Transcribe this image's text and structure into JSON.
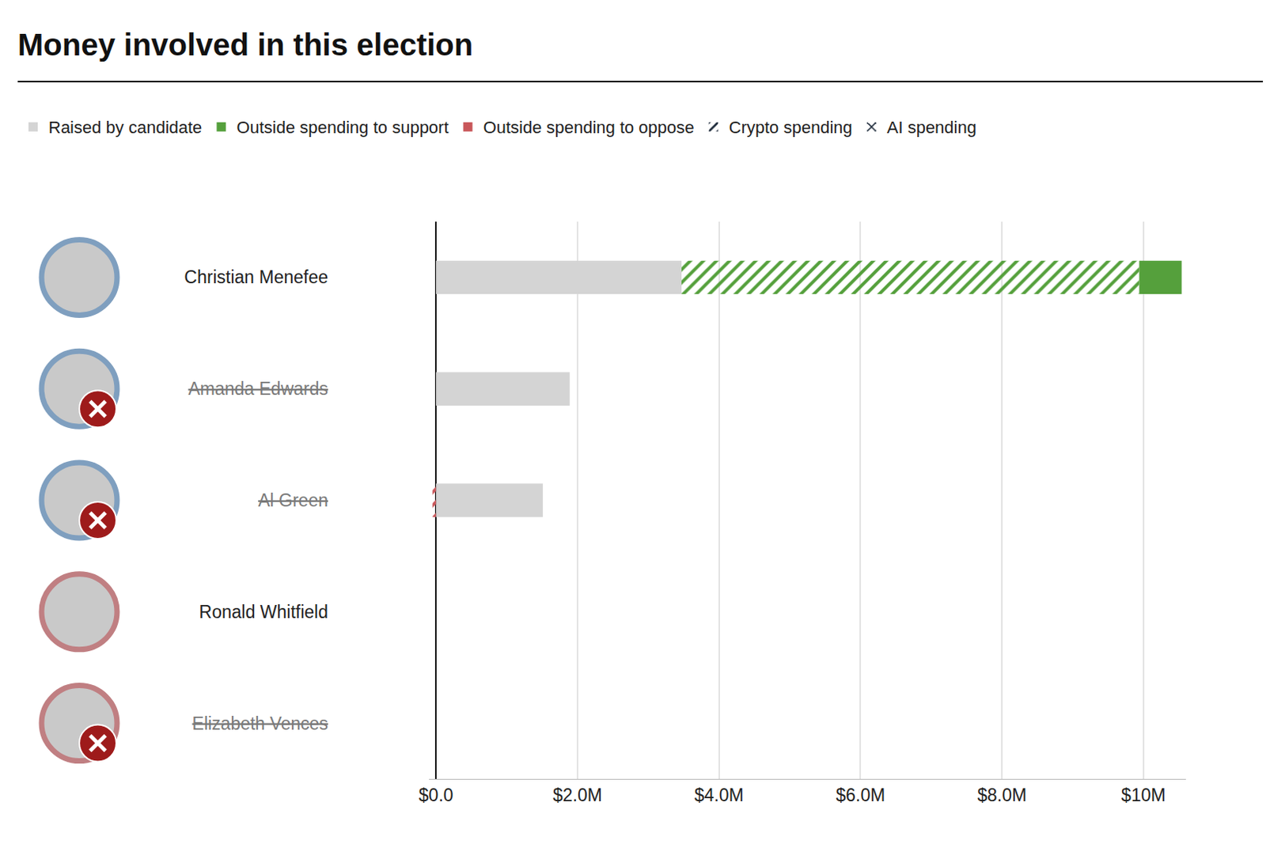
{
  "chart_data": {
    "type": "bar",
    "title": "Money involved in this election",
    "orientation": "horizontal",
    "stacked": true,
    "grid": true,
    "legend": "top",
    "categories": [
      "Christian Menefee",
      "Amanda Edwards",
      "Al Green",
      "Ronald Whitfield",
      "Elizabeth Vences"
    ],
    "eliminated": [
      false,
      true,
      true,
      false,
      true
    ],
    "ring_colors": [
      "#7f9fbf",
      "#7f9fbf",
      "#7f9fbf",
      "#c07f82",
      "#c07f82"
    ],
    "series": [
      {
        "name": "Raised by candidate",
        "color": "#d4d4d4",
        "values": [
          3470000,
          1890000,
          1510000,
          0,
          0
        ]
      },
      {
        "name": "Outside spending to support",
        "color": "#55a03c",
        "values": [
          600000,
          0,
          0,
          0,
          0
        ]
      },
      {
        "name": "Outside spending to oppose",
        "color": "#c9575a",
        "values": [
          0,
          0,
          0,
          0,
          0
        ]
      },
      {
        "name": "Crypto spending",
        "marker": "hatch",
        "colors": [
          "#55a03c",
          "#55a03c",
          "#c9575a",
          "#55a03c",
          "#55a03c"
        ],
        "values": [
          6470000,
          0,
          -50000,
          0,
          0
        ]
      },
      {
        "name": "AI spending",
        "marker": "crosshatch",
        "color": "#ffffff",
        "values": [
          0,
          0,
          0,
          0,
          0
        ]
      }
    ],
    "xlim": [
      -100000,
      10600000
    ],
    "xticks": [
      {
        "value": 0,
        "label": "$0.0"
      },
      {
        "value": 2000000,
        "label": "$2.0M"
      },
      {
        "value": 4000000,
        "label": "$4.0M"
      },
      {
        "value": 6000000,
        "label": "$6.0M"
      },
      {
        "value": 8000000,
        "label": "$8.0M"
      },
      {
        "value": 10000000,
        "label": "$10M"
      }
    ]
  }
}
